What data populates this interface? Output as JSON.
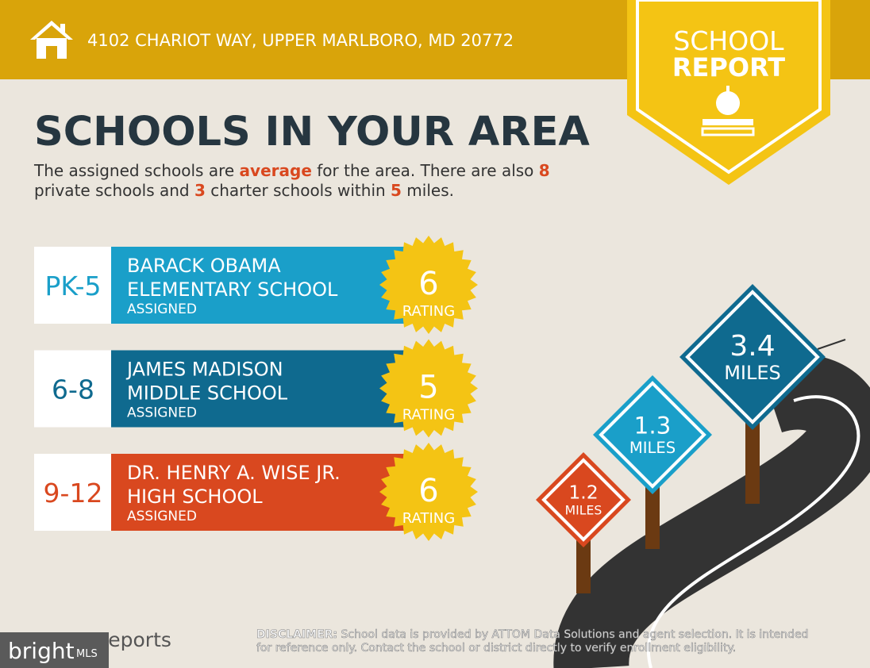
{
  "header": {
    "address": "4102 CHARIOT WAY, UPPER MARLBORO, MD 20772"
  },
  "badge": {
    "line1": "SCHOOL",
    "line2": "REPORT"
  },
  "title": "SCHOOLS IN YOUR AREA",
  "description": {
    "parts": [
      "The assigned schools are ",
      "average",
      " for the area. There are also ",
      "8",
      "private schools and ",
      "3",
      " charter schools within ",
      "5",
      " miles."
    ]
  },
  "schools": [
    {
      "grades": "PK-5",
      "name_lines": [
        "BARACK OBAMA",
        "ELEMENTARY SCHOOL"
      ],
      "status": "ASSIGNED",
      "rating": "6",
      "rating_label": "RATING",
      "color": "#1a9fc9"
    },
    {
      "grades": "6-8",
      "name_lines": [
        "JAMES MADISON",
        "MIDDLE SCHOOL"
      ],
      "status": "ASSIGNED",
      "rating": "5",
      "rating_label": "RATING",
      "color": "#0f6a8f"
    },
    {
      "grades": "9-12",
      "name_lines": [
        "DR. HENRY A. WISE JR.",
        "HIGH SCHOOL"
      ],
      "status": "ASSIGNED",
      "rating": "6",
      "rating_label": "RATING",
      "color": "#d9481f"
    }
  ],
  "signs": [
    {
      "distance": "3.4",
      "unit": "MILES",
      "color": "#0f6a8f"
    },
    {
      "distance": "1.3",
      "unit": "MILES",
      "color": "#1a9fc9"
    },
    {
      "distance": "1.2",
      "unit": "MILES",
      "color": "#d9481f"
    }
  ],
  "footer": {
    "brand": "Reports",
    "logo": "bright",
    "logo_suffix": "MLS",
    "disclaimer_label": "DISCLAIMER:",
    "disclaimer_lines": [
      " School data is provided by ATTOM Data Solutions and agent selection. It is intended",
      "for reference only. Contact the school or district directly to verify enrollment eligibility."
    ]
  }
}
